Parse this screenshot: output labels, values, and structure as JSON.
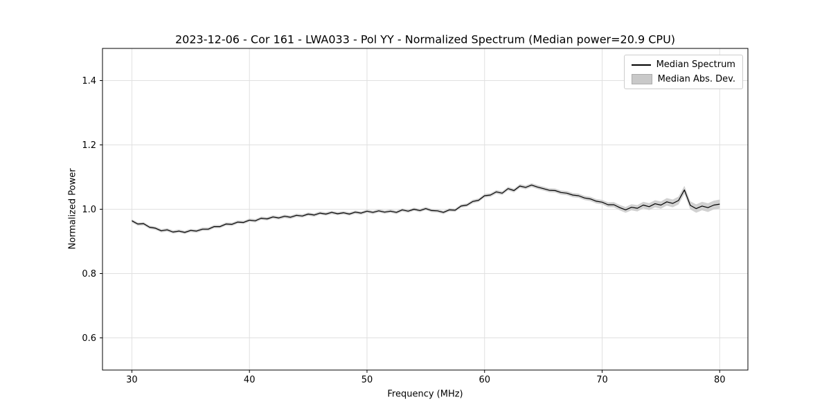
{
  "figure": {
    "background": "#ffffff"
  },
  "chart_data": {
    "type": "line",
    "title": "2023-12-06 - Cor 161 - LWA033 - Pol YY - Normalized Spectrum (Median power=20.9 CPU)",
    "xlabel": "Frequency (MHz)",
    "ylabel": "Normalized Power",
    "xlim": [
      27.5,
      82.4
    ],
    "ylim": [
      0.5,
      1.5
    ],
    "xticks": [
      30,
      40,
      50,
      60,
      70,
      80
    ],
    "yticks": [
      0.6,
      0.8,
      1.0,
      1.2,
      1.4
    ],
    "grid": true,
    "colors": {
      "line": "#000000",
      "band": "#c9c9c9",
      "grid": "#e0e0e0",
      "spine": "#000000",
      "tick": "#000000"
    },
    "legend": [
      {
        "label": "Median Spectrum",
        "type": "line",
        "color": "#000000"
      },
      {
        "label": "Median Abs. Dev.",
        "type": "patch",
        "color": "#c9c9c9"
      }
    ],
    "series": [
      {
        "name": "Median Spectrum",
        "x_start": 30.0,
        "x_step": 0.5,
        "y": [
          0.964,
          0.954,
          0.955,
          0.944,
          0.941,
          0.933,
          0.936,
          0.929,
          0.932,
          0.928,
          0.934,
          0.932,
          0.938,
          0.938,
          0.946,
          0.946,
          0.954,
          0.953,
          0.96,
          0.959,
          0.966,
          0.964,
          0.972,
          0.97,
          0.976,
          0.973,
          0.978,
          0.975,
          0.981,
          0.979,
          0.985,
          0.982,
          0.988,
          0.985,
          0.99,
          0.986,
          0.989,
          0.985,
          0.991,
          0.988,
          0.994,
          0.99,
          0.995,
          0.991,
          0.994,
          0.99,
          0.998,
          0.994,
          1.0,
          0.996,
          1.002,
          0.996,
          0.995,
          0.99,
          0.998,
          0.997,
          1.01,
          1.013,
          1.024,
          1.028,
          1.042,
          1.044,
          1.054,
          1.05,
          1.064,
          1.058,
          1.072,
          1.068,
          1.075,
          1.069,
          1.064,
          1.059,
          1.058,
          1.052,
          1.05,
          1.044,
          1.042,
          1.035,
          1.032,
          1.025,
          1.022,
          1.014,
          1.014,
          1.005,
          0.998,
          1.006,
          1.003,
          1.013,
          1.008,
          1.017,
          1.013,
          1.023,
          1.018,
          1.027,
          1.06,
          1.012,
          1.002,
          1.01,
          1.005,
          1.013,
          1.016
        ]
      }
    ],
    "band": {
      "name": "Median Abs. Dev.",
      "anchor_x": [
        30,
        55,
        65,
        70,
        73,
        76,
        80
      ],
      "half_width": [
        0.005,
        0.005,
        0.006,
        0.007,
        0.01,
        0.012,
        0.014
      ]
    }
  }
}
